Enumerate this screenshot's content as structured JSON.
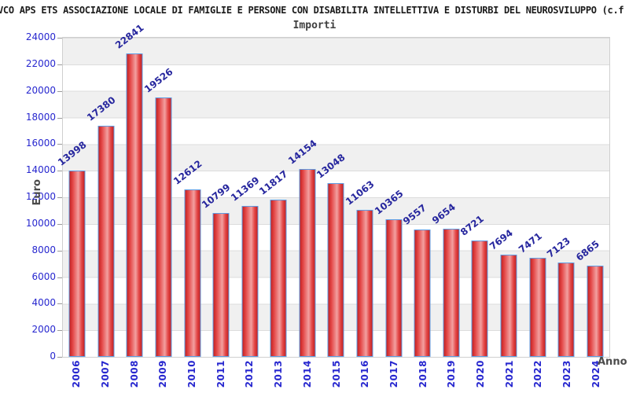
{
  "title": "VCO APS ETS ASSOCIAZIONE LOCALE DI FAMIGLIE E PERSONE CON DISABILITA INTELLETTIVA E DISTURBI DEL NEUROSVILUPPO (c.f",
  "subtitle": "Importi",
  "chart_data": {
    "type": "bar",
    "title": "Importi",
    "xlabel": "Anno",
    "ylabel": "Euro",
    "categories": [
      "2006",
      "2007",
      "2008",
      "2009",
      "2010",
      "2011",
      "2012",
      "2013",
      "2014",
      "2015",
      "2016",
      "2017",
      "2018",
      "2019",
      "2020",
      "2021",
      "2022",
      "2023",
      "2024"
    ],
    "values": [
      13998,
      17380,
      22841,
      19526,
      12612,
      10799,
      11369,
      11817,
      14154,
      13048,
      11063,
      10365,
      9557,
      9654,
      8721,
      7694,
      7471,
      7123,
      6865
    ],
    "ylim": [
      0,
      24000
    ],
    "ytick_step": 2000,
    "grid": true,
    "legend_position": "none",
    "bar_labels_rotated": true
  },
  "colors": {
    "title_color": "#1b1b1b",
    "bar_fill_dark": "#c32222",
    "bar_fill_mid": "#e44848",
    "bar_fill_light": "#f2a0a0",
    "bar_border": "#5d9ce3",
    "value_label": "#26269e",
    "axis_tick_label": "#2727cf",
    "axis_title": "#4b4b4b",
    "band_gray": "#f0f0f0",
    "gridline": "#dcdcdc"
  }
}
